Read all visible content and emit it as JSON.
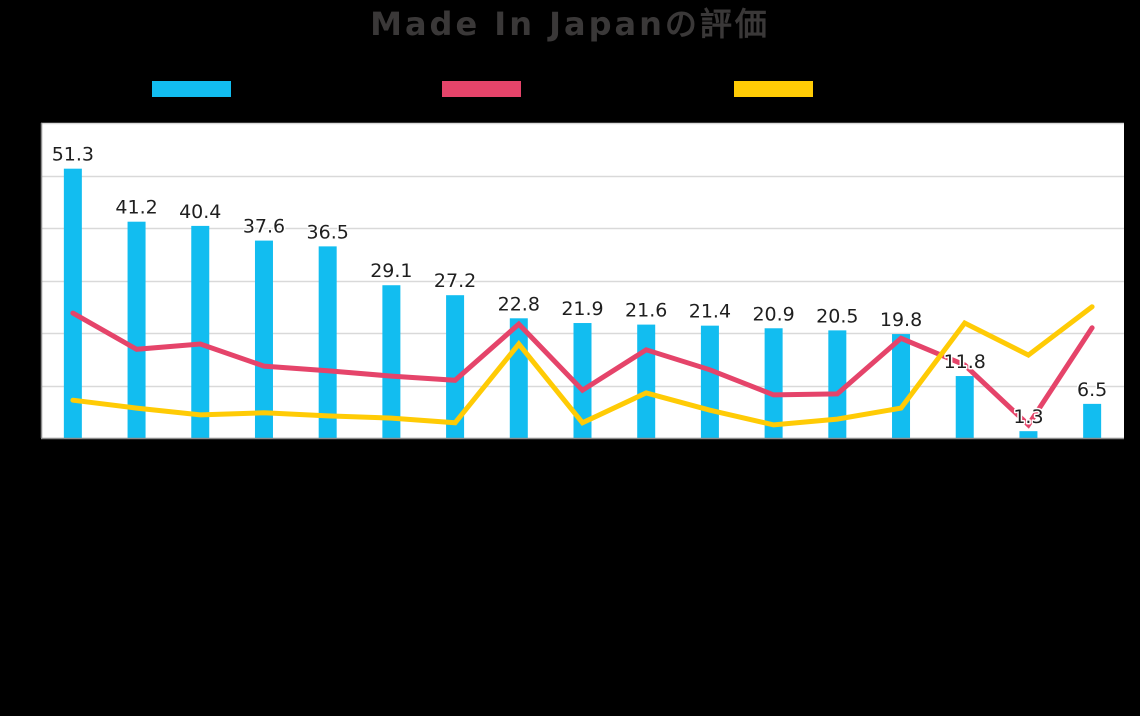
{
  "title": "Made In Japanの評価",
  "colors": {
    "background": "#000000",
    "plot_background": "#FFFFFF",
    "gridline": "#D9D9D9",
    "axis": "#8C8C8C",
    "title": "#3A3838",
    "bar": "#12BDF0",
    "red_line": "#E5446A",
    "yellow_line": "#FFCB05"
  },
  "legend": [
    {
      "name": "series-bar",
      "label": "",
      "color": "#12BDF0"
    },
    {
      "name": "series-red-line",
      "label": "",
      "color": "#E5446A"
    },
    {
      "name": "series-yellow-line",
      "label": "",
      "color": "#FFCB05"
    }
  ],
  "chart_data": {
    "type": "bar",
    "title": "Made In Japanの評価",
    "xlabel": "",
    "ylabel": "",
    "ylim": [
      0,
      60
    ],
    "yticks": [
      0,
      10,
      20,
      30,
      40,
      50,
      60
    ],
    "grid": true,
    "legend_position": "top",
    "categories": [
      "",
      "",
      "",
      "",
      "",
      "",
      "",
      "",
      "",
      "",
      "",
      "",
      "",
      "",
      "",
      "",
      ""
    ],
    "series": [
      {
        "name": "",
        "type": "bar",
        "color": "#12BDF0",
        "values": [
          51.3,
          41.2,
          40.4,
          37.6,
          36.5,
          29.1,
          27.2,
          22.8,
          21.9,
          21.6,
          21.4,
          20.9,
          20.5,
          19.8,
          11.8,
          1.3,
          6.5
        ],
        "data_labels": [
          "51.3",
          "41.2",
          "40.4",
          "37.6",
          "36.5",
          "29.1",
          "27.2",
          "22.8",
          "21.9",
          "21.6",
          "21.4",
          "20.9",
          "20.5",
          "19.8",
          "11.8",
          "1.3",
          "6.5"
        ]
      },
      {
        "name": "",
        "type": "line",
        "color": "#E5446A",
        "values": [
          23.8,
          16.9,
          17.9,
          13.7,
          12.8,
          11.8,
          11.0,
          21.7,
          9.1,
          16.8,
          13.0,
          8.2,
          8.4,
          19.0,
          13.9,
          2.5,
          21.0
        ]
      },
      {
        "name": "",
        "type": "line",
        "color": "#FFCB05",
        "values": [
          7.2,
          5.7,
          4.4,
          4.8,
          4.2,
          3.8,
          2.9,
          17.9,
          2.9,
          8.6,
          5.3,
          2.5,
          3.6,
          5.7,
          21.9,
          15.8,
          25.0
        ]
      }
    ]
  }
}
